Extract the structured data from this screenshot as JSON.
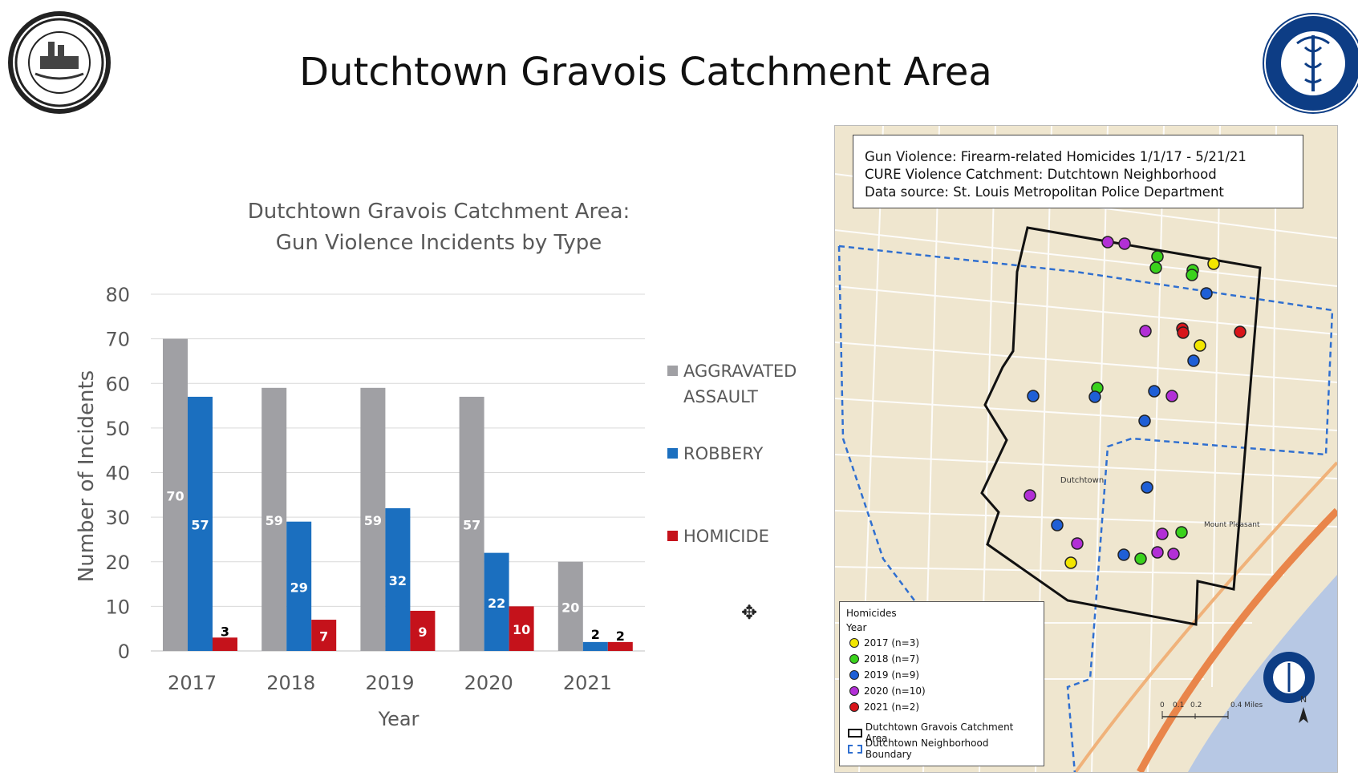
{
  "page": {
    "title": "Dutchtown Gravois Catchment Area"
  },
  "colors": {
    "aggravated_assault": "#a0a0a4",
    "robbery": "#1b6fbf",
    "homicide": "#c5121b"
  },
  "chart_data": {
    "type": "bar",
    "title": "Dutchtown Gravois Catchment Area:",
    "subtitle": "Gun Violence Incidents by Type",
    "xlabel": "Year",
    "ylabel": "Number of Incidents",
    "ylim": [
      0,
      80
    ],
    "yticks": [
      "0",
      "10",
      "20",
      "30",
      "40",
      "50",
      "60",
      "70",
      "80"
    ],
    "categories": [
      "2017",
      "2018",
      "2019",
      "2020",
      "2021"
    ],
    "grid": true,
    "legend_position": "right",
    "series": [
      {
        "name_line1": "AGGRAVATED",
        "name_line2": "ASSAULT",
        "values": [
          70,
          59,
          59,
          57,
          20
        ]
      },
      {
        "name_line1": "ROBBERY",
        "name_line2": "",
        "values": [
          57,
          29,
          32,
          22,
          2
        ]
      },
      {
        "name_line1": "HOMICIDE",
        "name_line2": "",
        "values": [
          3,
          7,
          9,
          10,
          2
        ]
      }
    ]
  },
  "map": {
    "info_lines": [
      "Gun Violence: Firearm-related Homicides 1/1/17 - 5/21/21",
      "CURE Violence Catchment: Dutchtown Neighborhood",
      "Data source: St. Louis Metropolitan Police Department"
    ],
    "legend": {
      "title": "Homicides",
      "subtitle": "Year",
      "years": [
        {
          "label": "2017 (n=3)",
          "color": "#f2e600"
        },
        {
          "label": "2018 (n=7)",
          "color": "#3ad21c"
        },
        {
          "label": "2019 (n=9)",
          "color": "#1f5fd6"
        },
        {
          "label": "2020 (n=10)",
          "color": "#b22fd6"
        },
        {
          "label": "2021 (n=2)",
          "color": "#d8151a"
        }
      ],
      "catchment_label": "Dutchtown Gravois Catchment Area",
      "boundary_label": "Dutchtown Neighborhood Boundary"
    },
    "place_labels": {
      "neighborhood": "Dutchtown",
      "mount_pleasant": "Mount Pleasant"
    },
    "scale_label": "0.4 Miles",
    "scale_ticks": [
      "0",
      "0.1",
      "0.2"
    ],
    "north_label": "N"
  }
}
